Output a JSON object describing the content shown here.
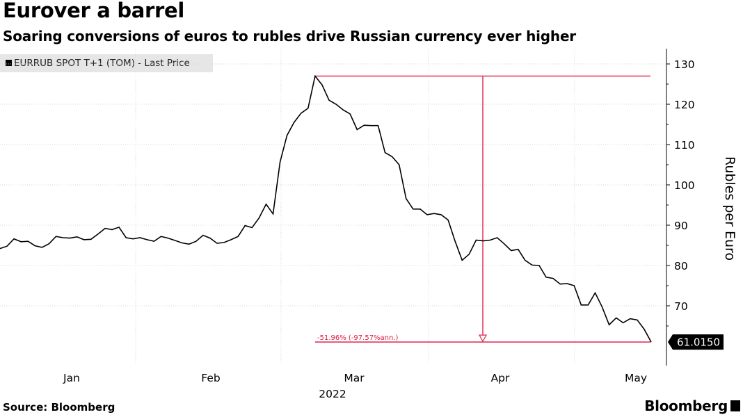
{
  "title": "Eurover a barrel",
  "subtitle": "Soaring conversions of euros to rubles drive Russian currency ever higher",
  "legend_label": "EURRUB SPOT T+1 (TOM) - Last Price",
  "source": "Source: Bloomberg",
  "brand": "Bloomberg",
  "colors": {
    "line": "#000000",
    "annotation": "#e0224a",
    "grid": "#d8d8d8",
    "legend_bg": "#e6e6e6"
  },
  "chart_data": {
    "type": "line",
    "series": [
      {
        "name": "EURRUB SPOT T+1 (TOM) - Last Price",
        "values": [
          84.2,
          84.8,
          86.6,
          85.9,
          86.0,
          84.9,
          84.5,
          85.4,
          87.2,
          86.9,
          86.8,
          87.1,
          86.4,
          86.5,
          87.8,
          89.2,
          88.9,
          89.5,
          86.9,
          86.6,
          86.9,
          86.4,
          86.0,
          87.2,
          86.8,
          86.2,
          85.6,
          85.3,
          86.0,
          87.5,
          86.8,
          85.5,
          85.7,
          86.4,
          87.2,
          89.9,
          89.4,
          91.8,
          95.2,
          92.8,
          105.7,
          112.3,
          115.5,
          117.8,
          119.0,
          127.0,
          124.8,
          121.0,
          120.0,
          118.6,
          117.6,
          113.7,
          114.8,
          114.7,
          114.7,
          108.0,
          107.0,
          105.0,
          96.6,
          94.0,
          94.0,
          92.6,
          92.9,
          92.6,
          91.3,
          86.0,
          81.3,
          82.8,
          86.3,
          86.1,
          86.3,
          86.9,
          85.4,
          83.7,
          84.0,
          81.3,
          80.1,
          80.0,
          77.1,
          76.8,
          75.4,
          75.5,
          75.0,
          70.2,
          70.2,
          73.2,
          69.7,
          65.3,
          67.0,
          65.8,
          66.8,
          66.5,
          64.2,
          61.015
        ]
      }
    ],
    "x_tick_labels": [
      "Jan",
      "Feb",
      "Mar",
      "Apr",
      "May"
    ],
    "x_year_label": "2022",
    "y_ticks": [
      70,
      80,
      90,
      100,
      110,
      120,
      130
    ],
    "ylim": [
      57,
      130
    ],
    "ylabel": "Rubles per Euro",
    "last_value_label": "61.0150",
    "annotation": {
      "from_value": 127.0,
      "to_value": 61.015,
      "text": "-51.96% (-97.57%ann.)"
    }
  }
}
